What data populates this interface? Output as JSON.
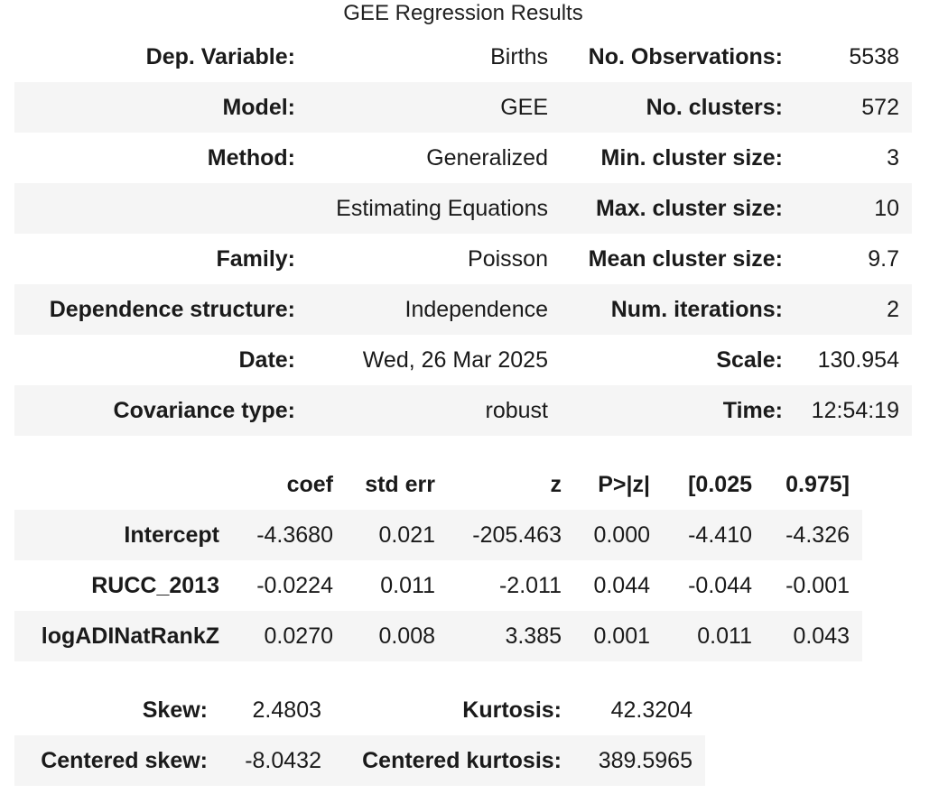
{
  "title": "GEE Regression Results",
  "summary": {
    "rows": [
      {
        "label1": "Dep. Variable:",
        "value1": "Births",
        "label2": "No. Observations:",
        "value2": "5538"
      },
      {
        "label1": "Model:",
        "value1": "GEE",
        "label2": "No. clusters:",
        "value2": "572"
      },
      {
        "label1": "Method:",
        "value1": "Generalized",
        "label2": "Min. cluster size:",
        "value2": "3"
      },
      {
        "label1": "",
        "value1": "Estimating Equations",
        "label2": "Max. cluster size:",
        "value2": "10"
      },
      {
        "label1": "Family:",
        "value1": "Poisson",
        "label2": "Mean cluster size:",
        "value2": "9.7"
      },
      {
        "label1": "Dependence structure:",
        "value1": "Independence",
        "label2": "Num. iterations:",
        "value2": "2"
      },
      {
        "label1": "Date:",
        "value1": "Wed, 26 Mar 2025",
        "label2": "Scale:",
        "value2": "130.954"
      },
      {
        "label1": "Covariance type:",
        "value1": "robust",
        "label2": "Time:",
        "value2": "12:54:19"
      }
    ]
  },
  "coefficients": {
    "headers": [
      "",
      "coef",
      "std err",
      "z",
      "P>|z|",
      "[0.025",
      "0.975]"
    ],
    "rows": [
      {
        "name": "Intercept",
        "cells": [
          "-4.3680",
          "0.021",
          "-205.463",
          "0.000",
          "-4.410",
          "-4.326"
        ]
      },
      {
        "name": "RUCC_2013",
        "cells": [
          "-0.0224",
          "0.011",
          "-2.011",
          "0.044",
          "-0.044",
          "-0.001"
        ]
      },
      {
        "name": "logADINatRankZ",
        "cells": [
          "0.0270",
          "0.008",
          "3.385",
          "0.001",
          "0.011",
          "0.043"
        ]
      }
    ]
  },
  "diagnostics": {
    "rows": [
      {
        "label1": "Skew:",
        "value1": "2.4803",
        "label2": "Kurtosis:",
        "value2": "42.3204"
      },
      {
        "label1": "Centered skew:",
        "value1": "-8.0432",
        "label2": "Centered kurtosis:",
        "value2": "389.5965"
      }
    ]
  }
}
